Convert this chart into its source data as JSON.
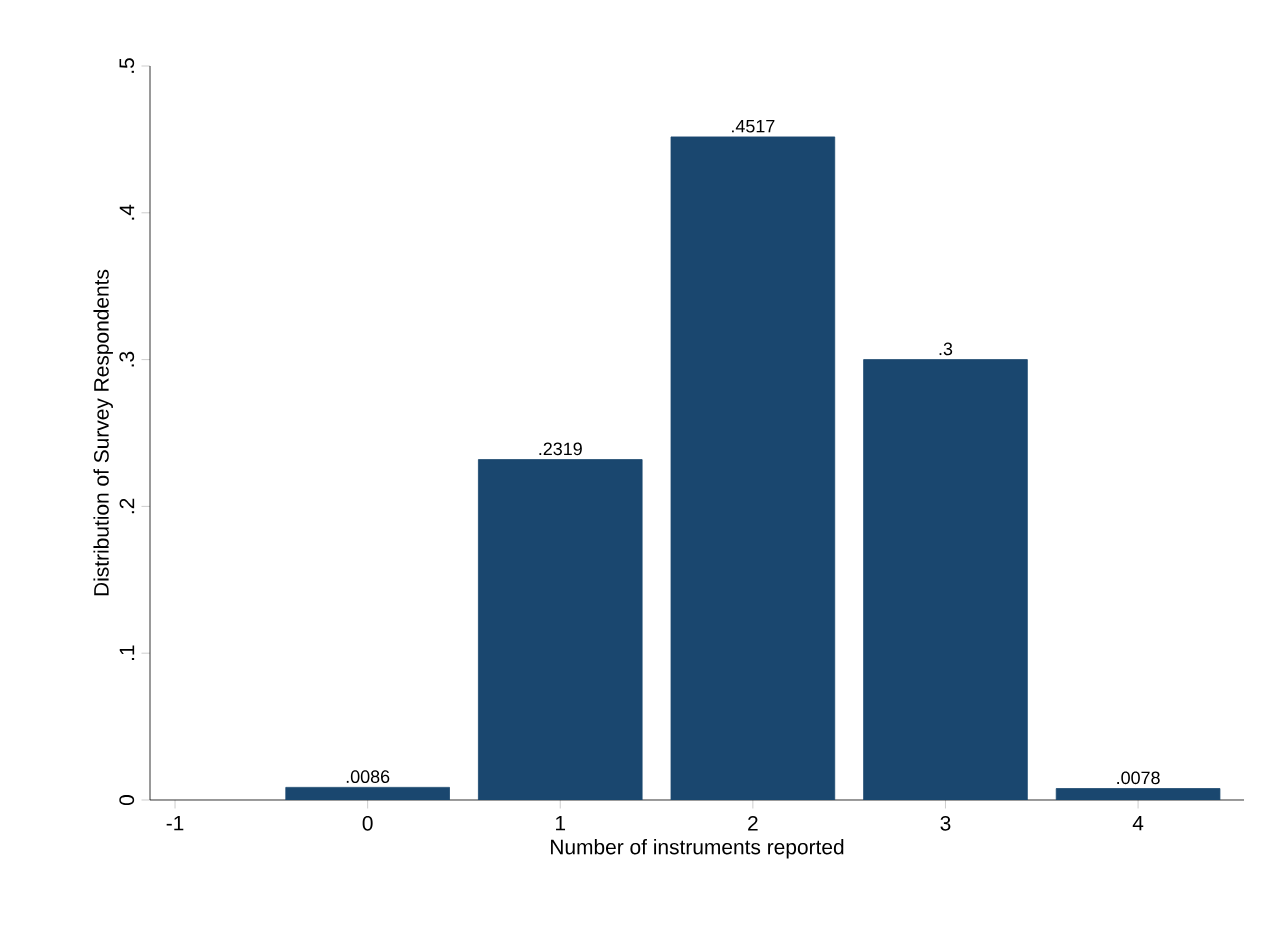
{
  "chart_data": {
    "type": "bar",
    "xlabel": "Number of instruments reported",
    "ylabel": "Distribution of Survey Respondents",
    "x": [
      0,
      1,
      2,
      3,
      4
    ],
    "values": [
      0.0086,
      0.2319,
      0.4517,
      0.3,
      0.0078
    ],
    "value_labels": [
      ".0086",
      ".2319",
      ".4517",
      ".3",
      ".0078"
    ],
    "color": "#1a476f",
    "xlim": [
      -1.13,
      4.55
    ],
    "xticks": [
      -1,
      0,
      1,
      2,
      3,
      4
    ],
    "ylim": [
      0,
      0.5
    ],
    "yticks": [
      0,
      {
        "value": 0.1,
        "label": ".1"
      },
      {
        "value": 0.2,
        "label": ".2"
      },
      {
        "value": 0.3,
        "label": ".3"
      },
      {
        "value": 0.4,
        "label": ".4"
      },
      {
        "value": 0.5,
        "label": ".5"
      }
    ]
  }
}
